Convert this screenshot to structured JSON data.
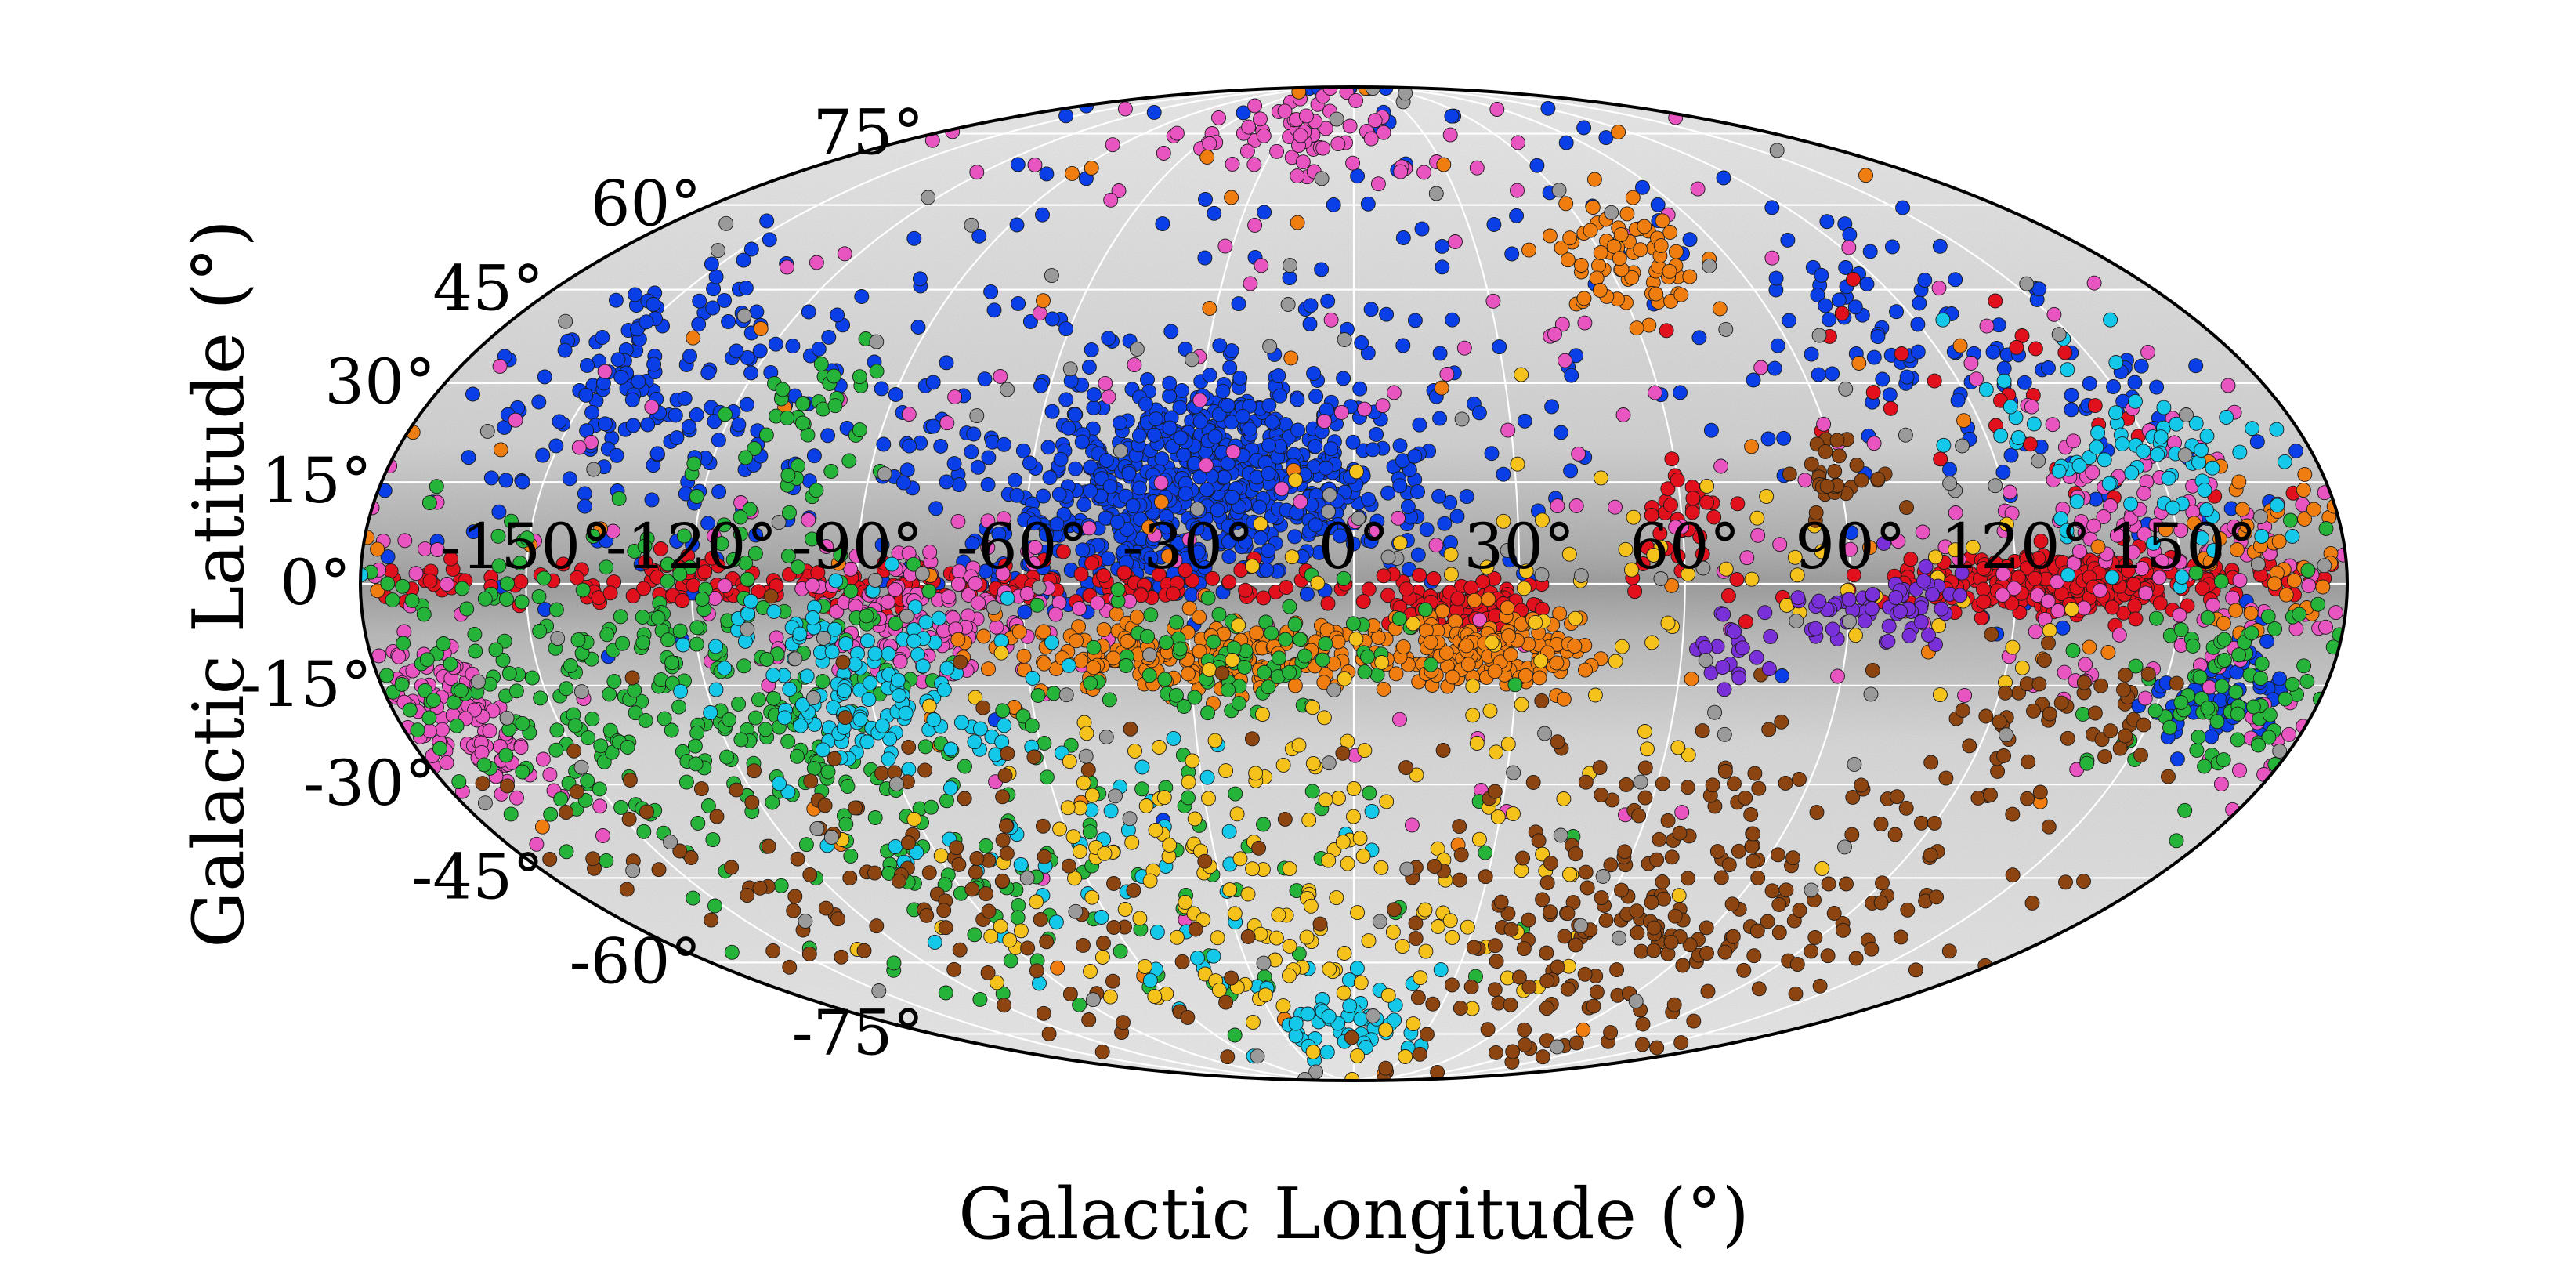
{
  "chart_data": {
    "type": "scatter",
    "projection": "mollweide",
    "xlabel": "Galactic Longitude (°)",
    "ylabel": "Galactic Latitude (°)",
    "xlim": [
      -180,
      180
    ],
    "ylim": [
      -90,
      90
    ],
    "grid": true,
    "x_ticks": [
      "-150°",
      "-120°",
      "-90°",
      "-60°",
      "-30°",
      "0°",
      "30°",
      "60°",
      "90°",
      "120°",
      "150°"
    ],
    "x_tick_values": [
      -150,
      -120,
      -90,
      -60,
      -30,
      0,
      30,
      60,
      90,
      120,
      150
    ],
    "y_ticks": [
      "75°",
      "60°",
      "45°",
      "30°",
      "15°",
      "0°",
      "-15°",
      "-30°",
      "-45°",
      "-60°",
      "-75°"
    ],
    "y_tick_values": [
      75,
      60,
      45,
      30,
      15,
      0,
      -15,
      -30,
      -45,
      -60,
      -75
    ],
    "background": "grey stellar density map, darker along the Galactic plane",
    "colors": {
      "blue": "#0a3ee6",
      "red": "#e0101c",
      "magenta": "#e855c0",
      "orange": "#f07d10",
      "green": "#26b33a",
      "cyan": "#14c8ea",
      "yellow": "#f5c21c",
      "brown": "#8c4410",
      "purple": "#7a30d8",
      "grey": "#9a9a9a"
    },
    "series": [
      {
        "color": "blue",
        "clusters": [
          {
            "l": -25,
            "b": 17,
            "sl": 20,
            "sb": 7,
            "n": 650
          },
          {
            "l": -40,
            "b": 5,
            "sl": 15,
            "sb": 5,
            "n": 120
          },
          {
            "l": -145,
            "b": 33,
            "sl": 12,
            "sb": 8,
            "n": 90
          },
          {
            "l": -120,
            "b": 20,
            "sl": 25,
            "sb": 12,
            "n": 110
          },
          {
            "l": 115,
            "b": 38,
            "sl": 15,
            "sb": 8,
            "n": 70
          },
          {
            "l": 150,
            "b": 20,
            "sl": 15,
            "sb": 12,
            "n": 50
          },
          {
            "l": 160,
            "b": -17,
            "sl": 6,
            "sb": 4,
            "n": 60
          },
          {
            "l": 0,
            "b": 40,
            "sl": 80,
            "sb": 25,
            "n": 180
          }
        ]
      },
      {
        "color": "red",
        "clusters": [
          {
            "l": 130,
            "b": 0,
            "sl": 15,
            "sb": 2,
            "n": 300
          },
          {
            "l": -90,
            "b": 0,
            "sl": 60,
            "sb": 2,
            "n": 220
          },
          {
            "l": 20,
            "b": -4,
            "sl": 8,
            "sb": 2,
            "n": 80
          },
          {
            "l": 60,
            "b": 10,
            "sl": 4,
            "sb": 4,
            "n": 30
          },
          {
            "l": 120,
            "b": 25,
            "sl": 20,
            "sb": 10,
            "n": 30
          }
        ]
      },
      {
        "color": "magenta",
        "clusters": [
          {
            "l": -170,
            "b": -20,
            "sl": 8,
            "sb": 6,
            "n": 120
          },
          {
            "l": -80,
            "b": -5,
            "sl": 15,
            "sb": 5,
            "n": 130
          },
          {
            "l": 150,
            "b": 5,
            "sl": 20,
            "sb": 10,
            "n": 150
          },
          {
            "l": -30,
            "b": 75,
            "sl": 30,
            "sb": 5,
            "n": 70
          },
          {
            "l": 0,
            "b": 20,
            "sl": 100,
            "sb": 30,
            "n": 150
          }
        ]
      },
      {
        "color": "orange",
        "clusters": [
          {
            "l": -30,
            "b": -10,
            "sl": 20,
            "sb": 3,
            "n": 200
          },
          {
            "l": 25,
            "b": -10,
            "sl": 10,
            "sb": 3,
            "n": 150
          },
          {
            "l": 65,
            "b": 50,
            "sl": 8,
            "sb": 5,
            "n": 70
          },
          {
            "l": 165,
            "b": 5,
            "sl": 8,
            "sb": 8,
            "n": 50
          },
          {
            "l": 0,
            "b": 10,
            "sl": 100,
            "sb": 40,
            "n": 60
          }
        ]
      },
      {
        "color": "green",
        "clusters": [
          {
            "l": -130,
            "b": -15,
            "sl": 30,
            "sb": 12,
            "n": 350
          },
          {
            "l": -20,
            "b": -10,
            "sl": 15,
            "sb": 5,
            "n": 80
          },
          {
            "l": 160,
            "b": -15,
            "sl": 10,
            "sb": 6,
            "n": 70
          },
          {
            "l": -105,
            "b": 25,
            "sl": 8,
            "sb": 6,
            "n": 40
          },
          {
            "l": -60,
            "b": -40,
            "sl": 40,
            "sb": 15,
            "n": 120
          }
        ]
      },
      {
        "color": "cyan",
        "clusters": [
          {
            "l": -90,
            "b": -15,
            "sl": 15,
            "sb": 6,
            "n": 140
          },
          {
            "l": 145,
            "b": 18,
            "sl": 15,
            "sb": 8,
            "n": 80
          },
          {
            "l": 0,
            "b": -72,
            "sl": 20,
            "sb": 5,
            "n": 50
          },
          {
            "l": -60,
            "b": -40,
            "sl": 25,
            "sb": 15,
            "n": 60
          }
        ]
      },
      {
        "color": "yellow",
        "clusters": [
          {
            "l": -20,
            "b": -45,
            "sl": 40,
            "sb": 15,
            "n": 200
          },
          {
            "l": 60,
            "b": 0,
            "sl": 40,
            "sb": 10,
            "n": 70
          }
        ]
      },
      {
        "color": "brown",
        "clusters": [
          {
            "l": 80,
            "b": -50,
            "sl": 35,
            "sb": 15,
            "n": 280
          },
          {
            "l": -100,
            "b": -45,
            "sl": 40,
            "sb": 15,
            "n": 140
          },
          {
            "l": 135,
            "b": -20,
            "sl": 10,
            "sb": 5,
            "n": 50
          },
          {
            "l": 90,
            "b": 15,
            "sl": 5,
            "sb": 4,
            "n": 30
          }
        ]
      },
      {
        "color": "purple",
        "clusters": [
          {
            "l": 95,
            "b": -3,
            "sl": 8,
            "sb": 3,
            "n": 60
          },
          {
            "l": 70,
            "b": -10,
            "sl": 4,
            "sb": 3,
            "n": 20
          }
        ]
      },
      {
        "color": "grey",
        "clusters": [
          {
            "l": 0,
            "b": 0,
            "sl": 100,
            "sb": 40,
            "n": 120
          }
        ]
      }
    ]
  }
}
